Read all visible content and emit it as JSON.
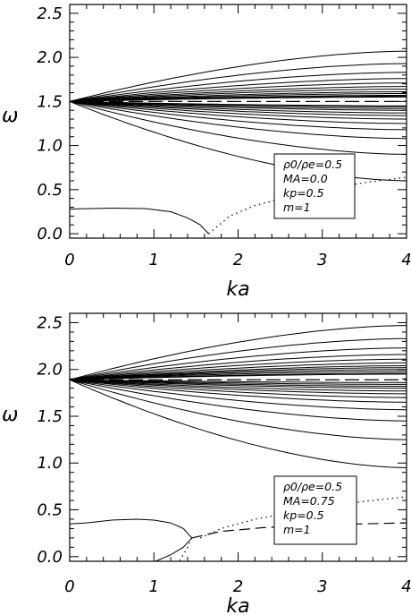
{
  "chart_data": [
    {
      "type": "line",
      "xlabel": "ka",
      "ylabel": "ω",
      "xlim": [
        0,
        4
      ],
      "ylim": [
        -0.05,
        2.6
      ],
      "x_ticks": [
        "0",
        "1",
        "2",
        "3",
        "4"
      ],
      "y_ticks": [
        "0.0",
        "0.5",
        "1.0",
        "1.5",
        "2.0",
        "2.5"
      ],
      "annotation": [
        "ρ0/ρe=0.5",
        "MA=0.0",
        "kp=0.5",
        "m=1"
      ],
      "fan": {
        "origin": 1.5,
        "upper_end": [
          2.07,
          1.93,
          1.83,
          1.76,
          1.71,
          1.67,
          1.64,
          1.61,
          1.59,
          1.57,
          1.56,
          1.55
        ],
        "lower_end": [
          0.6,
          0.9,
          1.08,
          1.18,
          1.25,
          1.3,
          1.34,
          1.37,
          1.4,
          1.42,
          1.44,
          1.45
        ]
      },
      "dashed_level": 1.5,
      "lower_solid": [
        [
          0,
          0.28
        ],
        [
          0.5,
          0.29
        ],
        [
          0.9,
          0.285
        ],
        [
          1.2,
          0.25
        ],
        [
          1.4,
          0.18
        ],
        [
          1.55,
          0.1
        ],
        [
          1.65,
          0.0
        ]
      ],
      "lower_dotted": [
        [
          1.65,
          0.0
        ],
        [
          1.9,
          0.2
        ],
        [
          2.2,
          0.32
        ],
        [
          2.6,
          0.42
        ],
        [
          3.0,
          0.5
        ],
        [
          3.5,
          0.58
        ],
        [
          4.0,
          0.64
        ]
      ]
    },
    {
      "type": "line",
      "xlabel": "ka",
      "ylabel": "ω",
      "xlim": [
        0,
        4
      ],
      "ylim": [
        -0.05,
        2.6
      ],
      "x_ticks": [
        "0",
        "1",
        "2",
        "3",
        "4"
      ],
      "y_ticks": [
        "0.0",
        "0.5",
        "1.0",
        "1.5",
        "2.0",
        "2.5"
      ],
      "annotation": [
        "ρ0/ρe=0.5",
        "MA=0.75",
        "kp=0.5",
        "m=1"
      ],
      "fan": {
        "origin": 1.89,
        "upper_end": [
          2.47,
          2.33,
          2.23,
          2.16,
          2.11,
          2.07,
          2.04,
          2.02,
          2.0,
          1.98,
          1.96,
          1.95
        ],
        "lower_end": [
          0.95,
          1.25,
          1.45,
          1.57,
          1.65,
          1.7,
          1.74,
          1.77,
          1.8,
          1.82,
          1.84,
          1.86
        ]
      },
      "dashed_level": 1.89,
      "loop_solid": [
        [
          1.02,
          -0.05
        ],
        [
          1.2,
          0.02
        ],
        [
          1.35,
          0.1
        ],
        [
          1.45,
          0.2
        ],
        [
          1.35,
          0.3
        ],
        [
          1.2,
          0.36
        ],
        [
          1.0,
          0.39
        ],
        [
          0.8,
          0.4
        ],
        [
          0.5,
          0.39
        ],
        [
          0.2,
          0.36
        ],
        [
          0,
          0.35
        ]
      ],
      "dotted_a": [
        [
          1.45,
          0.2
        ],
        [
          1.4,
          0.1
        ],
        [
          1.35,
          0.02
        ],
        [
          1.3,
          -0.05
        ]
      ],
      "dashed_b": [
        [
          1.45,
          0.2
        ],
        [
          1.8,
          0.27
        ],
        [
          2.3,
          0.31
        ],
        [
          3.0,
          0.34
        ],
        [
          4.0,
          0.36
        ]
      ],
      "dotted_c": [
        [
          1.55,
          0.2
        ],
        [
          1.8,
          0.3
        ],
        [
          2.2,
          0.4
        ],
        [
          2.8,
          0.5
        ],
        [
          3.4,
          0.58
        ],
        [
          4.0,
          0.64
        ]
      ]
    }
  ]
}
